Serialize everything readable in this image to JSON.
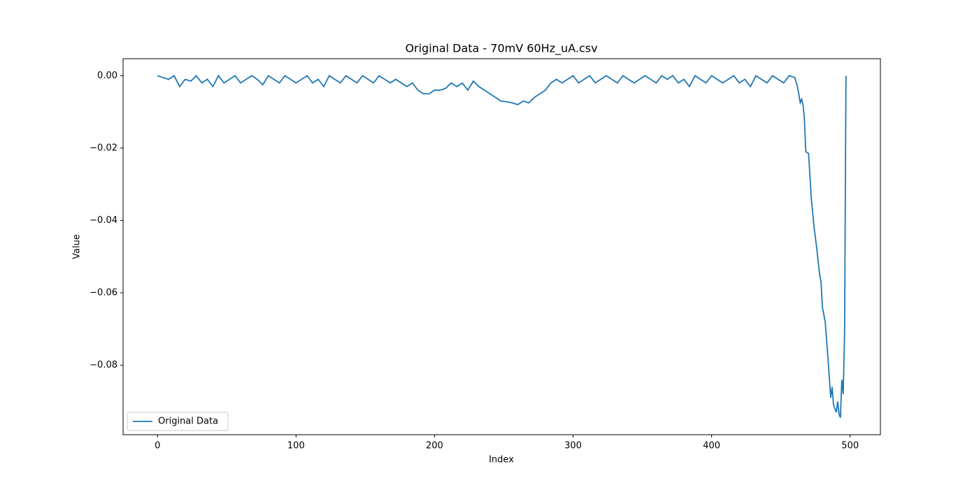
{
  "chart_data": {
    "type": "line",
    "title": "Original Data - 70mV 60Hz_uA.csv",
    "x_label": "Index",
    "y_label": "Value",
    "x": [
      0,
      4,
      8,
      12,
      16,
      20,
      24,
      28,
      32,
      36,
      40,
      44,
      48,
      52,
      56,
      60,
      64,
      68,
      72,
      76,
      80,
      84,
      88,
      92,
      96,
      100,
      104,
      108,
      112,
      116,
      120,
      124,
      128,
      132,
      136,
      140,
      144,
      148,
      152,
      156,
      160,
      164,
      168,
      172,
      176,
      180,
      184,
      188,
      192,
      196,
      200,
      204,
      208,
      212,
      216,
      220,
      224,
      228,
      232,
      236,
      240,
      244,
      248,
      252,
      256,
      260,
      264,
      268,
      272,
      276,
      280,
      284,
      288,
      292,
      296,
      300,
      304,
      308,
      312,
      316,
      320,
      324,
      328,
      332,
      336,
      340,
      344,
      348,
      352,
      356,
      360,
      364,
      368,
      372,
      376,
      380,
      384,
      388,
      392,
      396,
      400,
      404,
      408,
      412,
      416,
      420,
      424,
      428,
      432,
      436,
      440,
      444,
      448,
      452,
      456,
      460,
      462,
      464,
      465,
      466,
      467,
      468,
      470,
      472,
      474,
      476,
      478,
      479,
      480,
      482,
      484,
      486,
      487,
      488,
      490,
      491,
      492,
      493,
      494,
      495,
      496,
      497
    ],
    "series": [
      {
        "name": "Original Data",
        "color": "#1f77b4",
        "values": [
          0,
          -0.0005,
          -0.001,
          0,
          -0.003,
          -0.001,
          -0.0015,
          0,
          -0.002,
          -0.001,
          -0.003,
          0,
          -0.002,
          -0.001,
          0,
          -0.002,
          -0.001,
          0,
          -0.001,
          -0.0025,
          0,
          -0.001,
          -0.002,
          0,
          -0.001,
          -0.002,
          -0.001,
          0,
          -0.002,
          -0.001,
          -0.003,
          0,
          -0.001,
          -0.002,
          0,
          -0.001,
          -0.002,
          0,
          -0.001,
          -0.002,
          0,
          -0.001,
          -0.002,
          -0.001,
          -0.002,
          -0.003,
          -0.002,
          -0.004,
          -0.005,
          -0.005,
          -0.004,
          -0.004,
          -0.0035,
          -0.002,
          -0.003,
          -0.002,
          -0.004,
          -0.0015,
          -0.003,
          -0.004,
          -0.005,
          -0.006,
          -0.007,
          -0.0072,
          -0.0075,
          -0.008,
          -0.007,
          -0.0075,
          -0.006,
          -0.005,
          -0.004,
          -0.002,
          -0.001,
          -0.002,
          -0.001,
          0,
          -0.002,
          -0.001,
          0,
          -0.002,
          -0.001,
          0,
          -0.001,
          -0.002,
          0,
          -0.001,
          -0.002,
          -0.001,
          0,
          -0.001,
          -0.002,
          0,
          -0.001,
          0,
          -0.002,
          -0.001,
          -0.003,
          0,
          -0.001,
          -0.002,
          0,
          -0.001,
          -0.002,
          -0.001,
          0,
          -0.002,
          -0.001,
          -0.003,
          0,
          -0.001,
          -0.002,
          0,
          -0.001,
          -0.002,
          0,
          -0.0005,
          -0.003,
          -0.0075,
          -0.0065,
          -0.008,
          -0.012,
          -0.021,
          -0.0215,
          -0.034,
          -0.042,
          -0.048,
          -0.055,
          -0.057,
          -0.064,
          -0.068,
          -0.078,
          -0.089,
          -0.086,
          -0.091,
          -0.093,
          -0.09,
          -0.0935,
          -0.0945,
          -0.084,
          -0.088,
          -0.071,
          0
        ]
      }
    ],
    "xlim": [
      -24.85,
      521.85
    ],
    "xticks": [
      0,
      100,
      200,
      300,
      400,
      500
    ],
    "ylim": [
      -0.0992,
      0.0047
    ],
    "yticks": [
      {
        "value": 0,
        "label": "0.00"
      },
      {
        "value": -0.02,
        "label": "−0.02"
      },
      {
        "value": -0.04,
        "label": "−0.04"
      },
      {
        "value": -0.06,
        "label": "−0.06"
      },
      {
        "value": -0.08,
        "label": "−0.08"
      }
    ],
    "legend": "lower left"
  }
}
